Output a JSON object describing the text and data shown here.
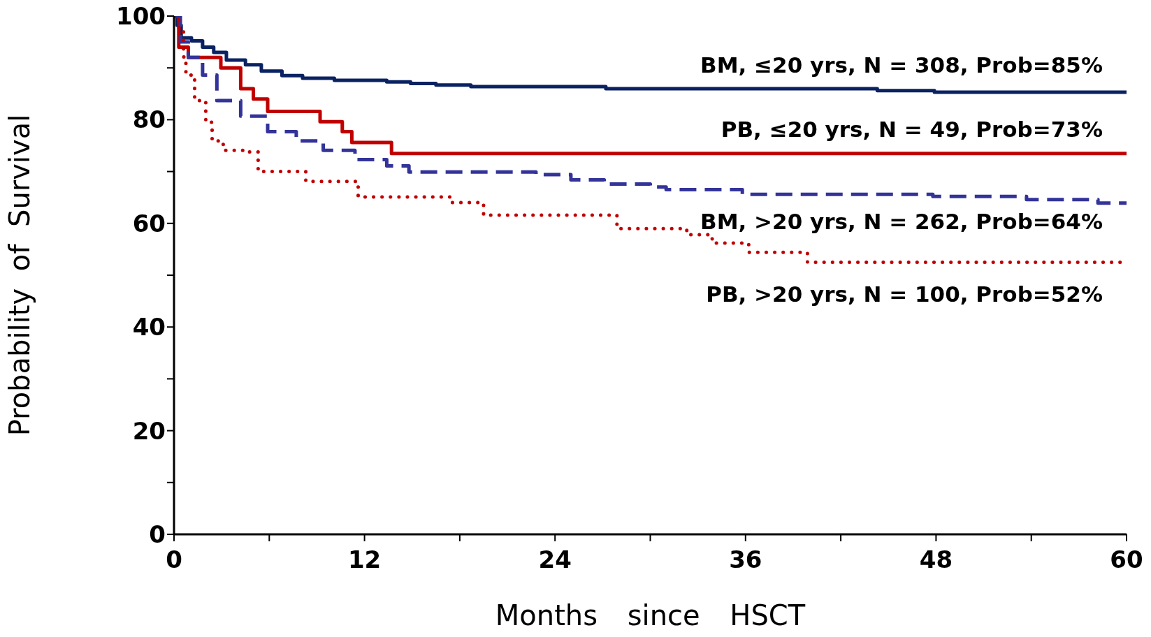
{
  "chart_data": {
    "type": "step",
    "xlabel": "Months since HSCT",
    "ylabel": "Probability of Survival",
    "xlim": [
      0,
      60
    ],
    "ylim": [
      0,
      100
    ],
    "xticks": [
      0,
      {
        "value": 6,
        "label": null
      },
      12,
      {
        "value": 18,
        "label": null
      },
      24,
      {
        "value": 30,
        "label": null
      },
      36,
      {
        "value": 42,
        "label": null
      },
      48,
      {
        "value": 54,
        "label": null
      },
      60
    ],
    "yticks": [
      0,
      {
        "value": 10,
        "label": null
      },
      20,
      {
        "value": 30,
        "label": null
      },
      40,
      {
        "value": 50,
        "label": null
      },
      60,
      {
        "value": 70,
        "label": null
      },
      80,
      {
        "value": 90,
        "label": null
      },
      100
    ],
    "marker": "none",
    "series": [
      {
        "name": "BM, ≤20 yrs, N = 308, Prob=85%",
        "color": "#0a2262",
        "line_style": "solid",
        "x": [
          0,
          0.2,
          0.45,
          1.1,
          1.8,
          2.5,
          3.3,
          4.5,
          5.5,
          6.8,
          8.1,
          10.1,
          13.4,
          14.9,
          16.5,
          18.7,
          27.2,
          44.3,
          47.9,
          60
        ],
        "values": [
          100,
          98.2,
          95.8,
          95.2,
          94,
          93,
          91.5,
          90.6,
          89.4,
          88.5,
          88,
          87.6,
          87.3,
          87,
          86.7,
          86.4,
          86,
          85.6,
          85.3,
          85
        ]
      },
      {
        "name": "PB, ≤20 yrs, N = 49, Prob=73%",
        "color": "#c00000",
        "line_style": "solid",
        "x": [
          0,
          0.3,
          0.9,
          2.95,
          4.2,
          5,
          5.9,
          9.2,
          10.6,
          11.2,
          13.7,
          60
        ],
        "values": [
          100,
          94,
          92,
          90,
          86,
          84,
          81.6,
          79.6,
          77.7,
          75.6,
          73.5,
          73.5
        ]
      },
      {
        "name": "BM, >20 yrs, N = 262, Prob=64%",
        "color": "#333399",
        "line_style": "dashed",
        "x": [
          0,
          0.4,
          0.9,
          1.8,
          2.7,
          4.2,
          5.9,
          7.7,
          9.4,
          11.4,
          13.4,
          14.8,
          22.8,
          25,
          27.1,
          30,
          31,
          35.8,
          47.8,
          53.7,
          58.2,
          60
        ],
        "values": [
          100,
          95,
          92,
          88.6,
          83.7,
          80.7,
          77.7,
          75.9,
          74.1,
          72.3,
          71.1,
          69.9,
          69.4,
          68.4,
          67.6,
          67,
          66.5,
          65.6,
          65.2,
          64.6,
          63.9,
          63.9
        ]
      },
      {
        "name": "PB, >20 yrs, N = 100, Prob=52%",
        "color": "#c00000",
        "line_style": "dotted",
        "x": [
          0,
          0.3,
          0.6,
          0.75,
          1.3,
          2,
          2.4,
          3.1,
          4.4,
          5.3,
          8.3,
          11.6,
          17.5,
          19.5,
          27.9,
          32.3,
          33.9,
          36.2,
          39.9,
          60
        ],
        "values": [
          100,
          97.7,
          92.1,
          88.6,
          83.7,
          79.5,
          75.9,
          74.1,
          73.8,
          70,
          68.1,
          65.1,
          64,
          61.6,
          59,
          57.8,
          56.2,
          54.4,
          52.5,
          52.5
        ]
      }
    ]
  }
}
